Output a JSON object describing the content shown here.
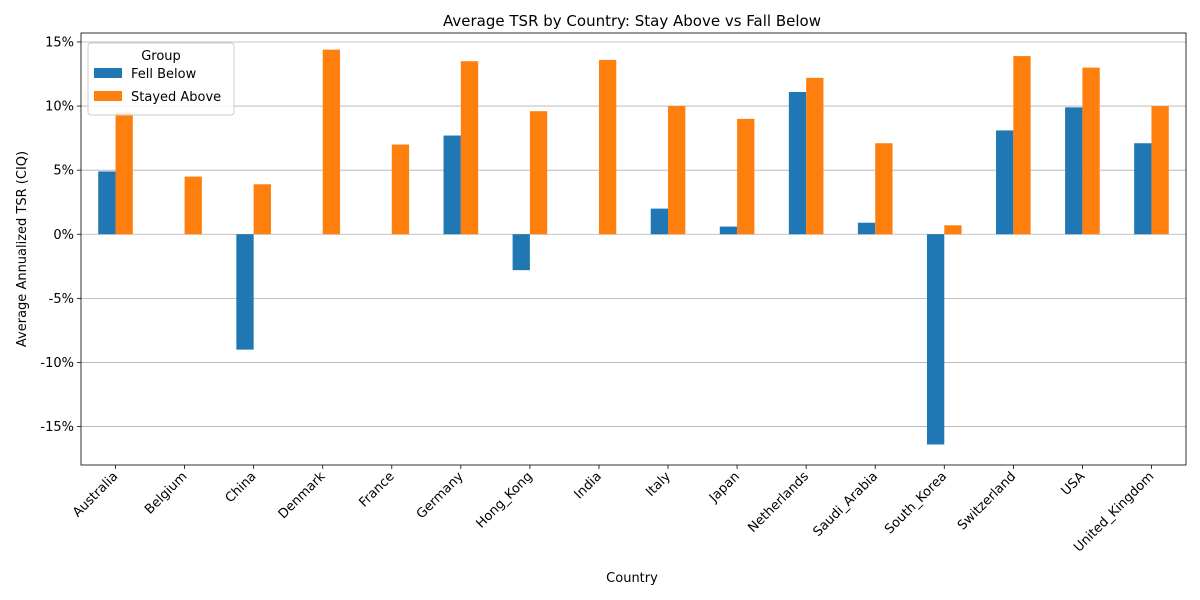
{
  "chart_data": {
    "type": "bar",
    "title": "Average TSR by Country: Stay Above vs Fall Below",
    "xlabel": "Country",
    "ylabel": "Average Annualized TSR (CIQ)",
    "ylim": [
      -0.18,
      0.157
    ],
    "yticks": [
      -0.15,
      -0.1,
      -0.05,
      0,
      0.05,
      0.1,
      0.15
    ],
    "ytick_labels": [
      "-15%",
      "-10%",
      "-5%",
      "0%",
      "5%",
      "10%",
      "15%"
    ],
    "grid": "horizontal",
    "legend": {
      "title": "Group",
      "position": "top-left"
    },
    "categories": [
      "Australia",
      "Belgium",
      "China",
      "Denmark",
      "France",
      "Germany",
      "Hong_Kong",
      "India",
      "Italy",
      "Japan",
      "Netherlands",
      "Saudi_Arabia",
      "South_Korea",
      "Switzerland",
      "USA",
      "United_Kingdom"
    ],
    "series": [
      {
        "name": "Fell Below",
        "color": "#1f77b4",
        "values": [
          0.049,
          null,
          -0.09,
          null,
          null,
          0.077,
          -0.028,
          null,
          0.02,
          0.006,
          0.111,
          0.009,
          -0.164,
          0.081,
          0.099,
          0.071
        ]
      },
      {
        "name": "Stayed Above",
        "color": "#ff7f0e",
        "values": [
          0.095,
          0.045,
          0.039,
          0.144,
          0.07,
          0.135,
          0.096,
          0.136,
          0.1,
          0.09,
          0.122,
          0.071,
          0.007,
          0.139,
          0.13,
          0.1
        ]
      }
    ]
  }
}
